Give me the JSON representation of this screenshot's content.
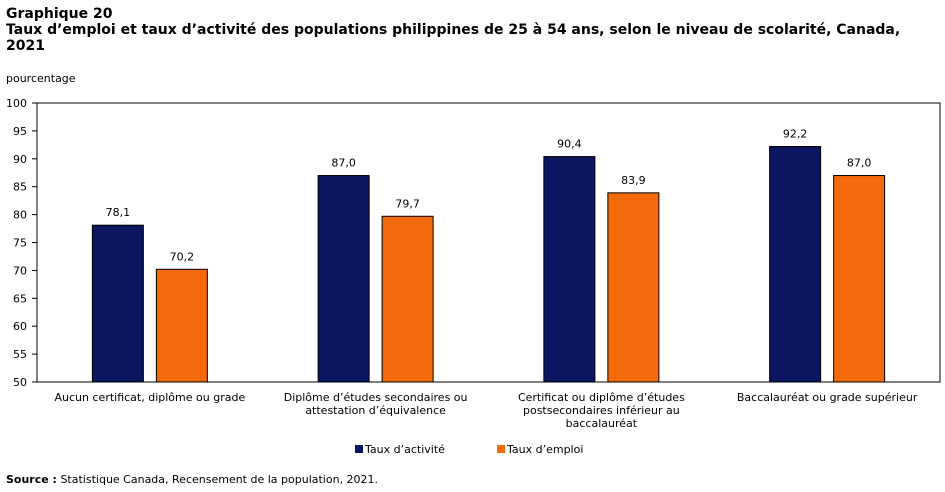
{
  "chart_data": {
    "type": "bar",
    "title": "Graphique 20",
    "subtitle": "Taux d’emploi et taux d’activité des populations philippines de 25 à 54 ans, selon le niveau de scolarité, Canada, 2021",
    "y_label": "pourcentage",
    "categories": [
      "Aucun certificat, diplôme ou grade",
      "Diplôme d’études secondaires ou attestation d’équivalence",
      "Certificat ou diplôme d’études postsecondaires inférieur au baccalauréat",
      "Baccalauréat ou grade supérieur"
    ],
    "series": [
      {
        "name": "Taux d’activité",
        "color": "#0c1560",
        "values": [
          78.1,
          87.0,
          90.4,
          92.2
        ],
        "value_labels": [
          "78,1",
          "87,0",
          "90,4",
          "92,2"
        ]
      },
      {
        "name": "Taux d’emploi",
        "color": "#f26a0a",
        "values": [
          70.2,
          79.7,
          83.9,
          87.0
        ],
        "value_labels": [
          "70,2",
          "79,7",
          "83,9",
          "87,0"
        ]
      }
    ],
    "ylim": [
      50,
      100
    ],
    "yticks": [
      50,
      55,
      60,
      65,
      70,
      75,
      80,
      85,
      90,
      95,
      100
    ],
    "grid": false,
    "source_label": "Source :",
    "source": "Statistique Canada, Recensement de la population, 2021."
  }
}
